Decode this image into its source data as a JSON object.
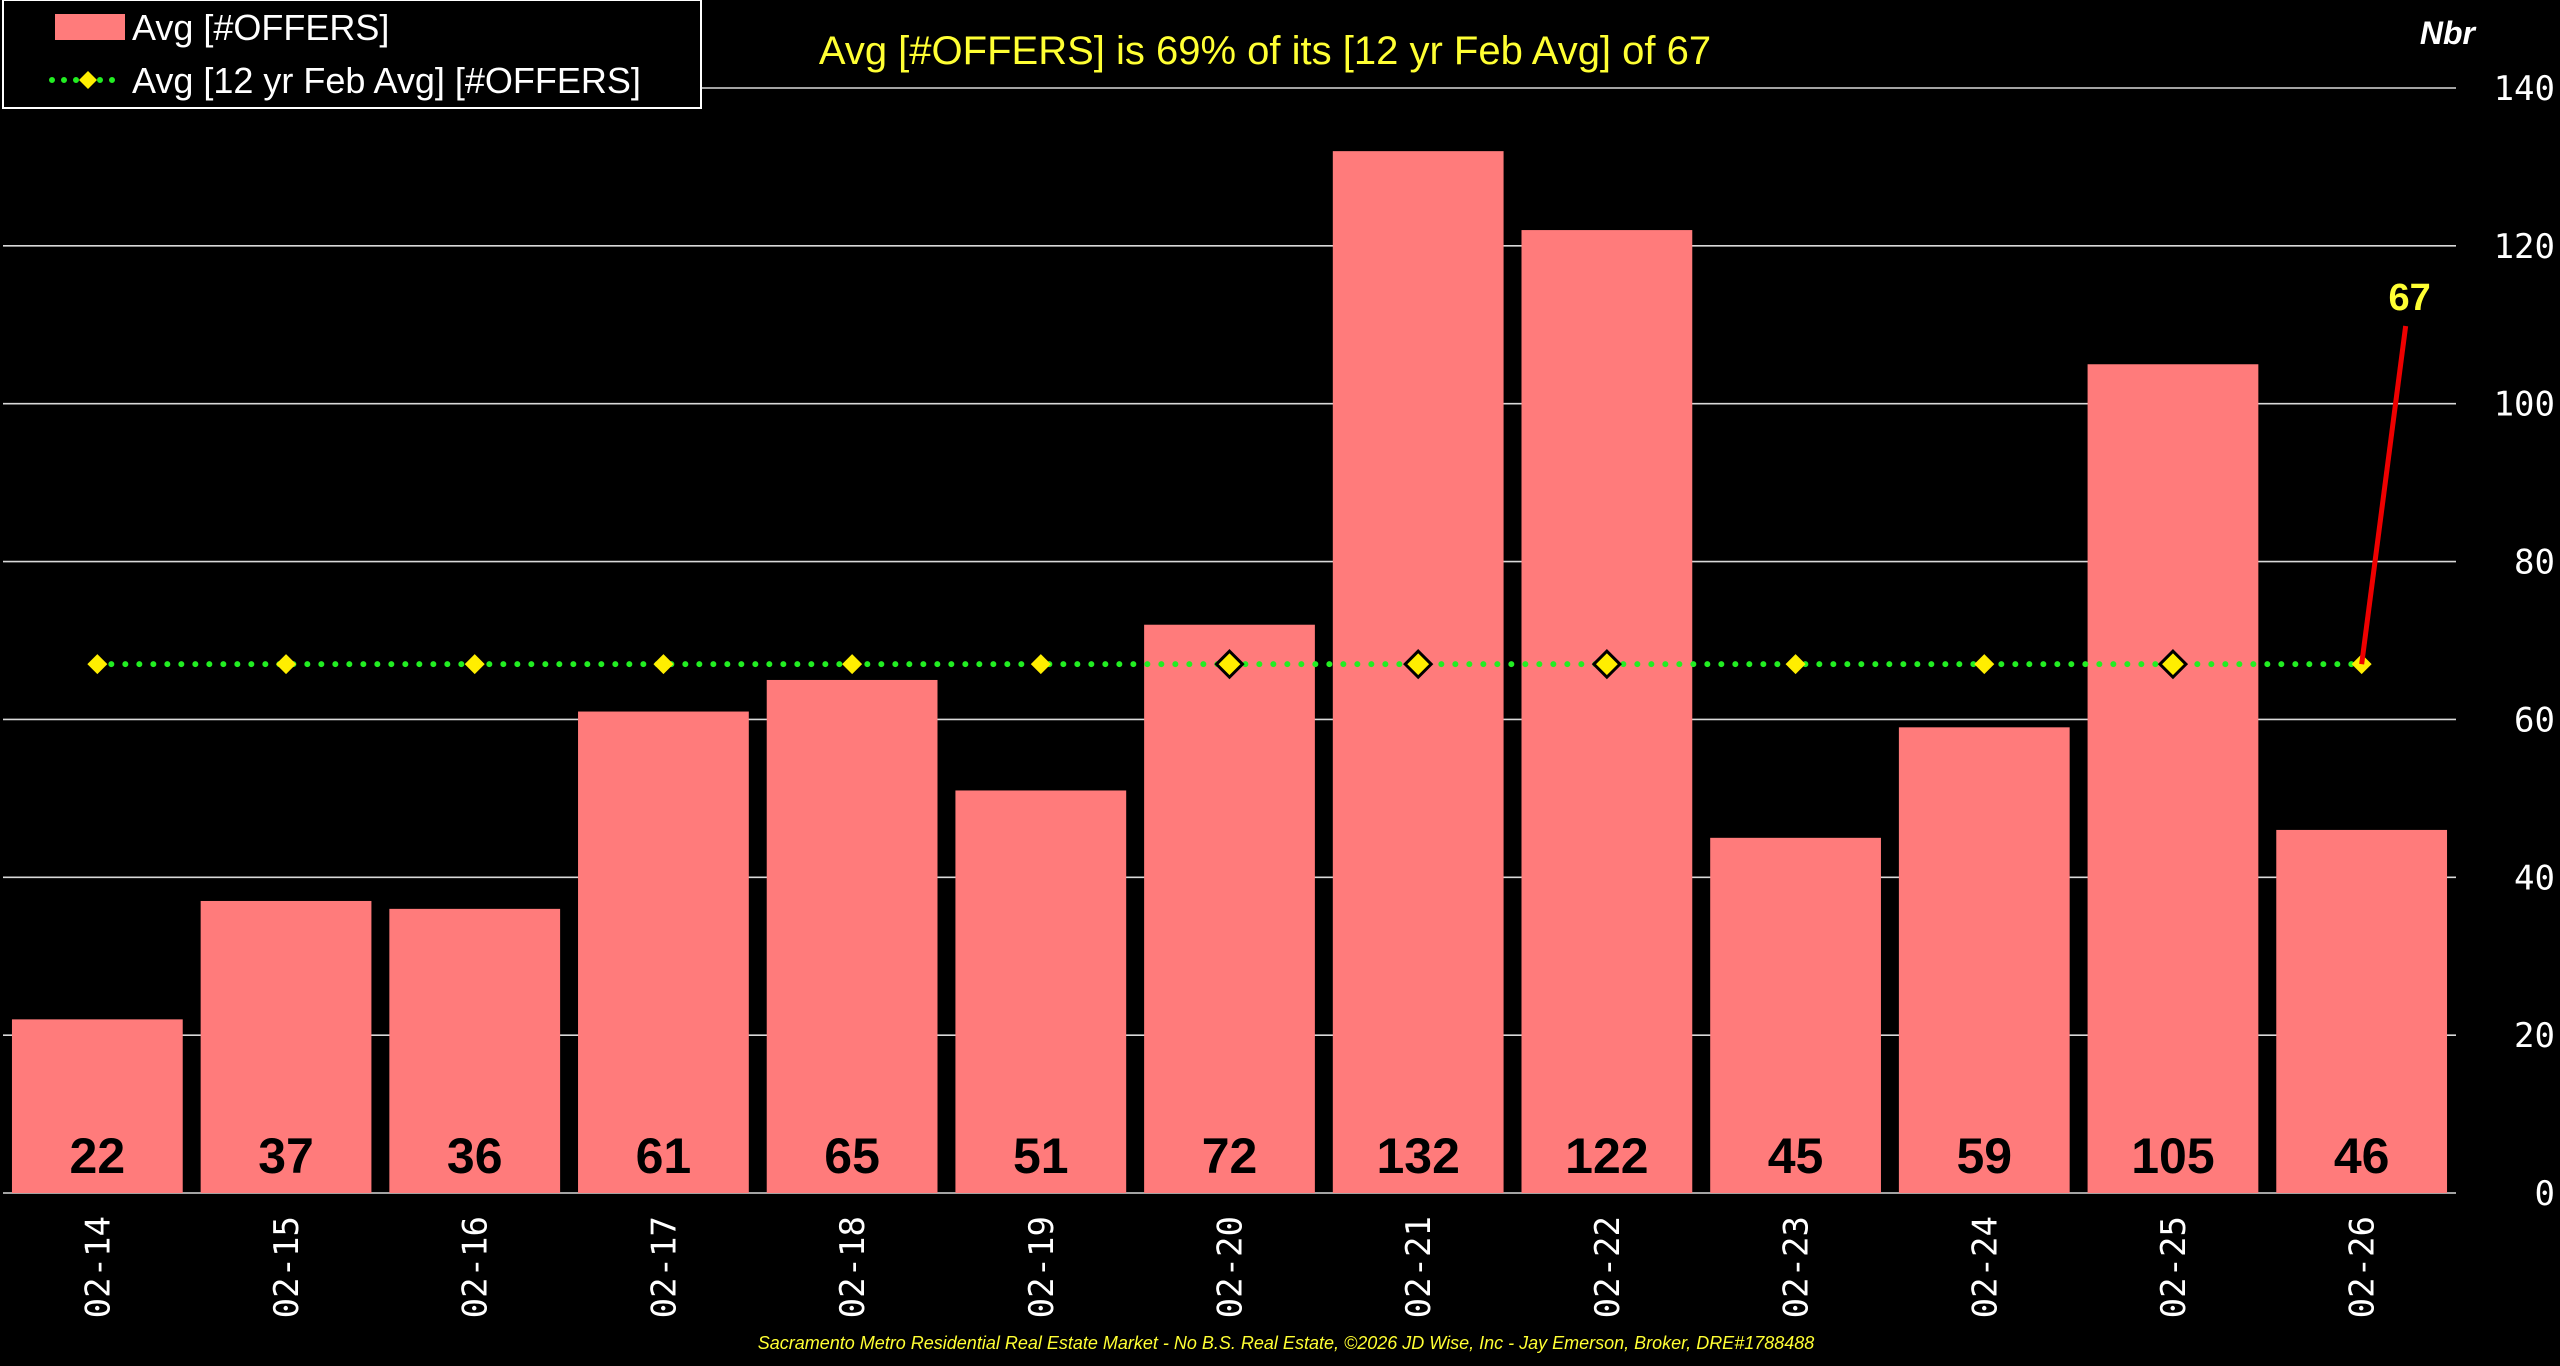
{
  "chart_data": {
    "type": "bar",
    "title": "Avg [#OFFERS] is 69% of its [12 yr Feb Avg] of 67",
    "ylabel": "Nbr",
    "xlabel": "",
    "ylim": [
      0,
      140
    ],
    "yticks": [
      "0",
      "20",
      "40",
      "60",
      "80",
      "100",
      "120",
      "140"
    ],
    "y_axis_side": "right",
    "grid": true,
    "legend_position": "top-left",
    "categories": [
      "02-14",
      "02-15",
      "02-16",
      "02-17",
      "02-18",
      "02-19",
      "02-20",
      "02-21",
      "02-22",
      "02-23",
      "02-24",
      "02-25",
      "02-26"
    ],
    "series": [
      {
        "name": "Avg [#OFFERS]",
        "type": "bar",
        "color": "#ff7b7b",
        "values": [
          22,
          37,
          36,
          61,
          65,
          51,
          72,
          132,
          122,
          45,
          59,
          105,
          46
        ],
        "labels": [
          "22",
          "37",
          "36",
          "61",
          "65",
          "51",
          "72",
          "132",
          "122",
          "45",
          "59",
          "105",
          "46"
        ]
      },
      {
        "name": "Avg [12 yr Feb Avg] [#OFFERS]",
        "type": "line",
        "style": "dotted",
        "color": "#22ee22",
        "marker": "diamond",
        "marker_color": "#ffee00",
        "values": [
          67,
          67,
          67,
          67,
          67,
          67,
          67,
          67,
          67,
          67,
          67,
          67,
          67
        ]
      }
    ],
    "annotation": {
      "text": "67",
      "color": "#ffff33",
      "arrow_color": "#ee0000"
    },
    "footer": "Sacramento Metro Residential Real Estate Market - No B.S. Real Estate, ©2026 JD Wise, Inc - Jay Emerson, Broker, DRE#1788488"
  }
}
